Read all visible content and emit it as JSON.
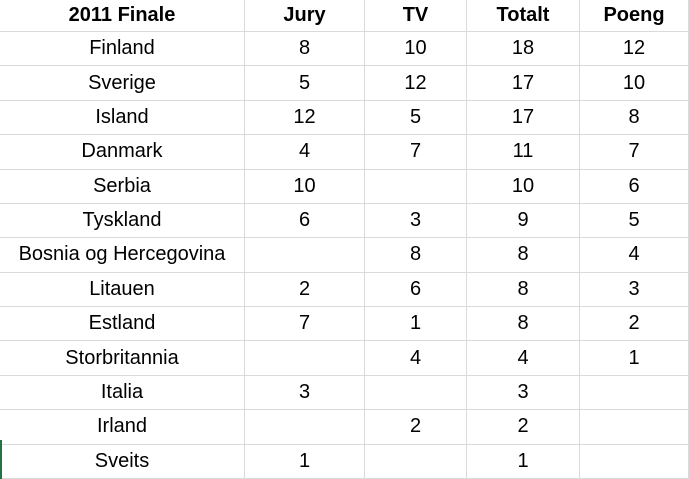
{
  "table": {
    "header": [
      "2011 Finale",
      "Jury",
      "TV",
      "Totalt",
      "Poeng"
    ],
    "rows": [
      [
        "Finland",
        8,
        10,
        18,
        12
      ],
      [
        "Sverige",
        5,
        12,
        17,
        10
      ],
      [
        "Island",
        12,
        5,
        17,
        8
      ],
      [
        "Danmark",
        4,
        7,
        11,
        7
      ],
      [
        "Serbia",
        10,
        null,
        10,
        6
      ],
      [
        "Tyskland",
        6,
        3,
        9,
        5
      ],
      [
        "Bosnia og Hercegovina",
        null,
        8,
        8,
        4
      ],
      [
        "Litauen",
        2,
        6,
        8,
        3
      ],
      [
        "Estland",
        7,
        1,
        8,
        2
      ],
      [
        "Storbritannia",
        null,
        4,
        4,
        1
      ],
      [
        "Italia",
        3,
        null,
        3,
        null
      ],
      [
        "Irland",
        null,
        2,
        2,
        null
      ],
      [
        "Sveits",
        1,
        null,
        1,
        null
      ]
    ]
  }
}
